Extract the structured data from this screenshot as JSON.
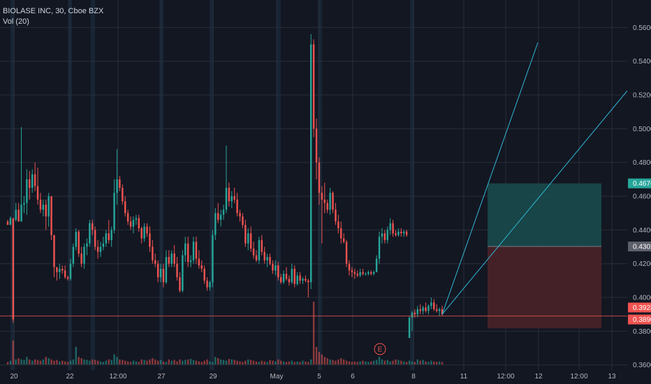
{
  "header": {
    "symbol": "BIOLASE INC, 30, Cboe BZX",
    "indicator": "Vol (20)"
  },
  "colors": {
    "background": "#131722",
    "grid": "#2a2e39",
    "up": "#26a69a",
    "down": "#ef5350",
    "session_band": "#1c3246",
    "trendline": "#2fb7d6",
    "profit_zone": "#1a4a4b",
    "loss_zone": "#4a2228",
    "price_line": "#f05350",
    "label_green": "#26a69a",
    "label_gray": "#5d606b",
    "label_red": "#ef5350",
    "earnings_marker": "#ef5350"
  },
  "chart_data": {
    "type": "candlestick",
    "y_axis": {
      "range": [
        0.3487,
        0.5763
      ],
      "ticks": [
        "0.5600",
        "0.5400",
        "0.5200",
        "0.5000",
        "0.4800",
        "0.4600",
        "0.4400",
        "0.4200",
        "0.4000",
        "0.3800",
        "0.3600"
      ],
      "side": "right"
    },
    "x_axis": {
      "ticks": [
        "20",
        "22",
        "12:00",
        "27",
        "29",
        "May",
        "5",
        "6",
        "8",
        "11",
        "12:00",
        "12",
        "12:00",
        "13"
      ]
    },
    "price_labels": [
      {
        "name": "target",
        "value": "0.4676",
        "style": "green"
      },
      {
        "name": "entry",
        "value": "0.4302",
        "style": "gray"
      },
      {
        "name": "stop",
        "value": "0.3928",
        "style": "red"
      },
      {
        "name": "last",
        "value": "0.3890",
        "style": "red"
      }
    ],
    "annotations": [
      {
        "type": "earnings",
        "text": "E"
      }
    ],
    "candles": [
      [
        0.445,
        0.446,
        0.443,
        0.443
      ],
      [
        0.443,
        0.448,
        0.443,
        0.447
      ],
      [
        0.447,
        0.447,
        0.385,
        0.387
      ],
      [
        0.446,
        0.456,
        0.445,
        0.452
      ],
      [
        0.452,
        0.456,
        0.445,
        0.445
      ],
      [
        0.445,
        0.501,
        0.445,
        0.455
      ],
      [
        0.455,
        0.46,
        0.45,
        0.456
      ],
      [
        0.456,
        0.476,
        0.449,
        0.47
      ],
      [
        0.47,
        0.475,
        0.458,
        0.465
      ],
      [
        0.465,
        0.476,
        0.462,
        0.473
      ],
      [
        0.473,
        0.48,
        0.463,
        0.466
      ],
      [
        0.466,
        0.477,
        0.455,
        0.458
      ],
      [
        0.458,
        0.462,
        0.45,
        0.452
      ],
      [
        0.452,
        0.458,
        0.448,
        0.455
      ],
      [
        0.455,
        0.458,
        0.44,
        0.448
      ],
      [
        0.448,
        0.462,
        0.442,
        0.46
      ],
      [
        0.46,
        0.46,
        0.434,
        0.437
      ],
      [
        0.437,
        0.437,
        0.412,
        0.418
      ],
      [
        0.418,
        0.418,
        0.41,
        0.415
      ],
      [
        0.415,
        0.42,
        0.411,
        0.417
      ],
      [
        0.417,
        0.419,
        0.414,
        0.416
      ],
      [
        0.416,
        0.419,
        0.411,
        0.412
      ],
      [
        0.412,
        0.413,
        0.41,
        0.411
      ],
      [
        0.411,
        0.423,
        0.41,
        0.42
      ],
      [
        0.42,
        0.432,
        0.418,
        0.43
      ],
      [
        0.43,
        0.441,
        0.428,
        0.439
      ],
      [
        0.439,
        0.44,
        0.424,
        0.426
      ],
      [
        0.426,
        0.43,
        0.418,
        0.42
      ],
      [
        0.42,
        0.432,
        0.417,
        0.43
      ],
      [
        0.43,
        0.435,
        0.425,
        0.432
      ],
      [
        0.432,
        0.446,
        0.43,
        0.444
      ],
      [
        0.444,
        0.446,
        0.437,
        0.44
      ],
      [
        0.44,
        0.442,
        0.428,
        0.43
      ],
      [
        0.43,
        0.434,
        0.423,
        0.427
      ],
      [
        0.427,
        0.433,
        0.424,
        0.43
      ],
      [
        0.43,
        0.436,
        0.428,
        0.432
      ],
      [
        0.432,
        0.44,
        0.43,
        0.438
      ],
      [
        0.438,
        0.446,
        0.432,
        0.434
      ],
      [
        0.434,
        0.442,
        0.43,
        0.44
      ],
      [
        0.44,
        0.47,
        0.438,
        0.462
      ],
      [
        0.462,
        0.488,
        0.455,
        0.47
      ],
      [
        0.47,
        0.472,
        0.463,
        0.465
      ],
      [
        0.465,
        0.467,
        0.455,
        0.457
      ],
      [
        0.457,
        0.46,
        0.448,
        0.45
      ],
      [
        0.45,
        0.452,
        0.443,
        0.445
      ],
      [
        0.445,
        0.448,
        0.44,
        0.442
      ],
      [
        0.442,
        0.448,
        0.438,
        0.446
      ],
      [
        0.446,
        0.449,
        0.443,
        0.447
      ],
      [
        0.447,
        0.449,
        0.439,
        0.441
      ],
      [
        0.441,
        0.442,
        0.432,
        0.435
      ],
      [
        0.435,
        0.444,
        0.433,
        0.442
      ],
      [
        0.442,
        0.444,
        0.436,
        0.438
      ],
      [
        0.438,
        0.442,
        0.427,
        0.43
      ],
      [
        0.43,
        0.434,
        0.42,
        0.422
      ],
      [
        0.422,
        0.426,
        0.418,
        0.42
      ],
      [
        0.42,
        0.422,
        0.409,
        0.412
      ],
      [
        0.412,
        0.42,
        0.409,
        0.417
      ],
      [
        0.417,
        0.42,
        0.406,
        0.409
      ],
      [
        0.409,
        0.428,
        0.408,
        0.424
      ],
      [
        0.424,
        0.428,
        0.418,
        0.42
      ],
      [
        0.42,
        0.428,
        0.418,
        0.426
      ],
      [
        0.426,
        0.431,
        0.418,
        0.42
      ],
      [
        0.42,
        0.424,
        0.41,
        0.412
      ],
      [
        0.412,
        0.415,
        0.403,
        0.404
      ],
      [
        0.404,
        0.428,
        0.403,
        0.425
      ],
      [
        0.425,
        0.436,
        0.421,
        0.432
      ],
      [
        0.432,
        0.436,
        0.418,
        0.421
      ],
      [
        0.421,
        0.425,
        0.418,
        0.422
      ],
      [
        0.422,
        0.436,
        0.42,
        0.433
      ],
      [
        0.433,
        0.436,
        0.42,
        0.423
      ],
      [
        0.423,
        0.428,
        0.417,
        0.419
      ],
      [
        0.419,
        0.422,
        0.415,
        0.417
      ],
      [
        0.417,
        0.419,
        0.408,
        0.41
      ],
      [
        0.41,
        0.412,
        0.404,
        0.406
      ],
      [
        0.406,
        0.41,
        0.404,
        0.409
      ],
      [
        0.409,
        0.44,
        0.406,
        0.437
      ],
      [
        0.437,
        0.453,
        0.434,
        0.45
      ],
      [
        0.45,
        0.456,
        0.444,
        0.446
      ],
      [
        0.446,
        0.452,
        0.442,
        0.449
      ],
      [
        0.449,
        0.455,
        0.446,
        0.452
      ],
      [
        0.452,
        0.49,
        0.45,
        0.465
      ],
      [
        0.465,
        0.468,
        0.454,
        0.457
      ],
      [
        0.457,
        0.463,
        0.453,
        0.46
      ],
      [
        0.46,
        0.465,
        0.456,
        0.458
      ],
      [
        0.458,
        0.462,
        0.448,
        0.45
      ],
      [
        0.45,
        0.452,
        0.445,
        0.448
      ],
      [
        0.448,
        0.45,
        0.441,
        0.443
      ],
      [
        0.443,
        0.446,
        0.43,
        0.432
      ],
      [
        0.432,
        0.441,
        0.428,
        0.438
      ],
      [
        0.438,
        0.442,
        0.427,
        0.429
      ],
      [
        0.429,
        0.433,
        0.423,
        0.425
      ],
      [
        0.425,
        0.428,
        0.421,
        0.422
      ],
      [
        0.422,
        0.436,
        0.42,
        0.434
      ],
      [
        0.434,
        0.437,
        0.425,
        0.427
      ],
      [
        0.427,
        0.43,
        0.42,
        0.422
      ],
      [
        0.422,
        0.426,
        0.418,
        0.424
      ],
      [
        0.424,
        0.426,
        0.419,
        0.42
      ],
      [
        0.42,
        0.422,
        0.414,
        0.416
      ],
      [
        0.416,
        0.422,
        0.413,
        0.419
      ],
      [
        0.419,
        0.421,
        0.41,
        0.412
      ],
      [
        0.412,
        0.414,
        0.408,
        0.409
      ],
      [
        0.409,
        0.416,
        0.408,
        0.414
      ],
      [
        0.414,
        0.418,
        0.41,
        0.411
      ],
      [
        0.411,
        0.413,
        0.407,
        0.409
      ],
      [
        0.409,
        0.42,
        0.408,
        0.417
      ],
      [
        0.417,
        0.419,
        0.406,
        0.408
      ],
      [
        0.408,
        0.415,
        0.407,
        0.413
      ],
      [
        0.413,
        0.415,
        0.408,
        0.41
      ],
      [
        0.41,
        0.412,
        0.408,
        0.411
      ],
      [
        0.411,
        0.413,
        0.409,
        0.41
      ],
      [
        0.41,
        0.411,
        0.4,
        0.409
      ],
      [
        0.409,
        0.556,
        0.405,
        0.55
      ],
      [
        0.55,
        0.553,
        0.495,
        0.5
      ],
      [
        0.5,
        0.506,
        0.47,
        0.48
      ],
      [
        0.48,
        0.483,
        0.455,
        0.462
      ],
      [
        0.462,
        0.466,
        0.432,
        0.458
      ],
      [
        0.458,
        0.468,
        0.45,
        0.456
      ],
      [
        0.456,
        0.458,
        0.45,
        0.452
      ],
      [
        0.452,
        0.465,
        0.449,
        0.462
      ],
      [
        0.462,
        0.463,
        0.45,
        0.452
      ],
      [
        0.452,
        0.456,
        0.443,
        0.445
      ],
      [
        0.445,
        0.449,
        0.438,
        0.441
      ],
      [
        0.441,
        0.445,
        0.432,
        0.435
      ],
      [
        0.435,
        0.438,
        0.432,
        0.433
      ],
      [
        0.433,
        0.434,
        0.418,
        0.42
      ],
      [
        0.42,
        0.422,
        0.413,
        0.416
      ],
      [
        0.416,
        0.418,
        0.412,
        0.415
      ],
      [
        0.415,
        0.417,
        0.411,
        0.414
      ],
      [
        0.414,
        0.416,
        0.412,
        0.413
      ],
      [
        0.413,
        0.417,
        0.412,
        0.415
      ],
      [
        0.415,
        0.417,
        0.413,
        0.414
      ],
      [
        0.414,
        0.415,
        0.413,
        0.414
      ],
      [
        0.414,
        0.416,
        0.413,
        0.415
      ],
      [
        0.415,
        0.416,
        0.413,
        0.414
      ],
      [
        0.414,
        0.416,
        0.413,
        0.415
      ],
      [
        0.415,
        0.425,
        0.415,
        0.423
      ],
      [
        0.423,
        0.439,
        0.42,
        0.436
      ],
      [
        0.436,
        0.441,
        0.432,
        0.438
      ],
      [
        0.438,
        0.44,
        0.432,
        0.434
      ],
      [
        0.434,
        0.442,
        0.432,
        0.44
      ],
      [
        0.44,
        0.447,
        0.437,
        0.444
      ],
      [
        0.444,
        0.446,
        0.436,
        0.438
      ],
      [
        0.438,
        0.44,
        0.436,
        0.437
      ],
      [
        0.437,
        0.441,
        0.436,
        0.439
      ],
      [
        0.439,
        0.441,
        0.436,
        0.438
      ],
      [
        0.438,
        0.44,
        0.436,
        0.439
      ],
      [
        0.439,
        0.44,
        0.436,
        0.437
      ],
      [
        0.376,
        0.389,
        0.376,
        0.388
      ],
      [
        0.388,
        0.392,
        0.38,
        0.391
      ],
      [
        0.391,
        0.393,
        0.388,
        0.39
      ],
      [
        0.39,
        0.395,
        0.388,
        0.393
      ],
      [
        0.393,
        0.396,
        0.39,
        0.392
      ],
      [
        0.392,
        0.395,
        0.39,
        0.394
      ],
      [
        0.394,
        0.397,
        0.391,
        0.392
      ],
      [
        0.392,
        0.396,
        0.39,
        0.395
      ],
      [
        0.395,
        0.4,
        0.393,
        0.397
      ],
      [
        0.397,
        0.399,
        0.392,
        0.393
      ],
      [
        0.393,
        0.396,
        0.391,
        0.392
      ],
      [
        0.392,
        0.394,
        0.389,
        0.393
      ],
      [
        0.393,
        0.395,
        0.389,
        0.39
      ]
    ],
    "volumes": [
      0.1,
      0.15,
      0.95,
      0.2,
      0.25,
      0.2,
      0.18,
      0.3,
      0.2,
      0.15,
      0.2,
      0.18,
      0.15,
      0.2,
      0.3,
      0.25,
      0.2,
      0.15,
      0.18,
      0.12,
      0.15,
      0.12,
      0.1,
      0.15,
      0.2,
      0.7,
      0.3,
      0.25,
      0.2,
      0.18,
      0.15,
      0.2,
      0.18,
      0.15,
      0.12,
      0.1,
      0.15,
      0.2,
      0.18,
      0.4,
      0.3,
      0.2,
      0.18,
      0.15,
      0.12,
      0.1,
      0.15,
      0.12,
      0.1,
      0.2,
      0.18,
      0.15,
      0.2,
      0.25,
      0.2,
      0.15,
      0.18,
      0.12,
      0.1,
      0.2,
      0.15,
      0.18,
      0.12,
      0.2,
      0.15,
      0.18,
      0.2,
      0.22,
      0.18,
      0.15,
      0.12,
      0.1,
      0.15,
      0.2,
      0.12,
      0.1,
      0.3,
      0.25,
      0.2,
      0.18,
      0.15,
      0.22,
      0.2,
      0.18,
      0.15,
      0.12,
      0.1,
      0.15,
      0.2,
      0.18,
      0.15,
      0.12,
      0.1,
      0.15,
      0.12,
      0.1,
      0.18,
      0.15,
      0.12,
      0.2,
      0.15,
      0.12,
      0.1,
      0.12,
      0.15,
      0.1,
      0.12,
      0.1,
      0.15,
      0.12,
      0.1,
      0.2,
      2.5,
      0.7,
      0.5,
      0.4,
      0.3,
      0.25,
      0.2,
      0.18,
      0.15,
      0.2,
      0.25,
      0.2,
      0.15,
      0.12,
      0.1,
      0.12,
      0.1,
      0.12,
      0.15,
      0.12,
      0.1,
      0.12,
      0.15,
      0.18,
      0.3,
      0.2,
      0.15,
      0.18,
      0.12,
      0.15,
      0.2,
      0.18,
      0.15,
      0.12,
      0.1,
      0.15,
      0.12,
      0.1,
      0.2,
      0.15,
      0.18,
      0.12,
      0.1,
      0.15,
      0.12,
      0.1,
      0.12,
      0.1
    ]
  }
}
